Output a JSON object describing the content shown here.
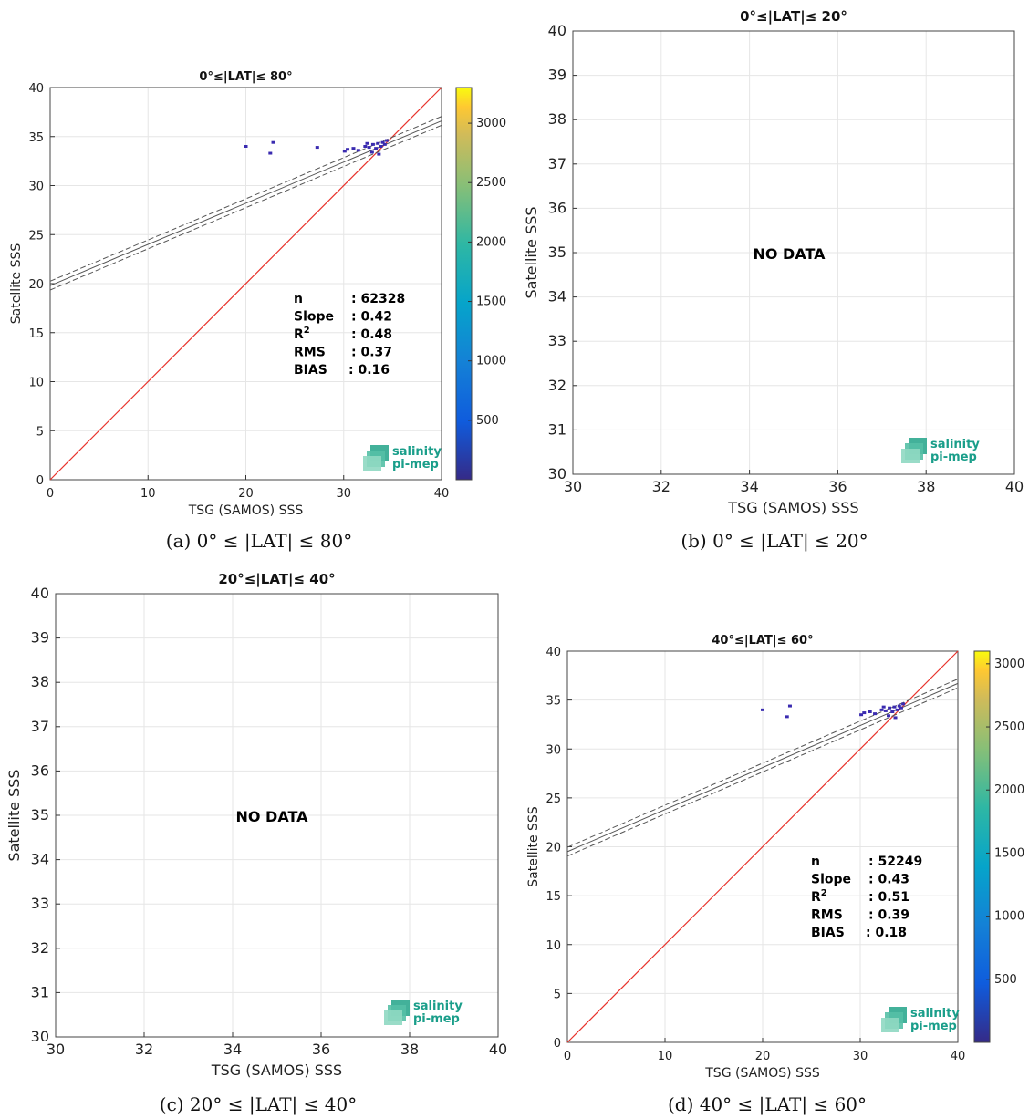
{
  "chart_data": [
    {
      "id": "a",
      "type": "scatter",
      "title": "0°≤|LAT|≤ 80°",
      "caption": "(a) 0° ≤ |LAT| ≤ 80°",
      "xlabel": "TSG (SAMOS) SSS",
      "ylabel": "Satellite SSS",
      "xlim": [
        0,
        40
      ],
      "ylim": [
        0,
        40
      ],
      "xticks": [
        0,
        10,
        20,
        30,
        40
      ],
      "yticks": [
        0,
        5,
        10,
        15,
        20,
        25,
        30,
        35,
        40
      ],
      "has_data": true,
      "no_data_text": "",
      "stats": [
        {
          "label": "n",
          "value": ": 62328"
        },
        {
          "label": "Slope",
          "value": ": 0.42"
        },
        {
          "label": "R2",
          "value": ": 0.48"
        },
        {
          "label": "RMS",
          "value": ": 0.37"
        },
        {
          "label": "BIAS",
          "value": ": 0.16"
        }
      ],
      "fit": {
        "slope": 0.42,
        "intercept": 19.8,
        "band": 0.45
      },
      "colorbar": {
        "min": 0,
        "max": 3300,
        "ticks": [
          500,
          1000,
          1500,
          2000,
          2500,
          3000
        ]
      },
      "points": [
        {
          "x": 20.0,
          "y": 34.0
        },
        {
          "x": 22.8,
          "y": 34.4
        },
        {
          "x": 22.5,
          "y": 33.3
        },
        {
          "x": 27.3,
          "y": 33.9
        },
        {
          "x": 30.1,
          "y": 33.5
        },
        {
          "x": 30.4,
          "y": 33.7
        },
        {
          "x": 31.0,
          "y": 33.8
        },
        {
          "x": 31.5,
          "y": 33.6
        },
        {
          "x": 32.2,
          "y": 34.0
        },
        {
          "x": 32.6,
          "y": 33.9
        },
        {
          "x": 33.0,
          "y": 34.2
        },
        {
          "x": 33.3,
          "y": 33.8
        },
        {
          "x": 33.5,
          "y": 34.3
        },
        {
          "x": 33.8,
          "y": 34.0
        },
        {
          "x": 34.0,
          "y": 34.4
        },
        {
          "x": 34.2,
          "y": 34.2
        },
        {
          "x": 32.9,
          "y": 33.4
        },
        {
          "x": 33.6,
          "y": 33.2
        },
        {
          "x": 34.4,
          "y": 34.6
        },
        {
          "x": 32.4,
          "y": 34.3
        }
      ],
      "logo": [
        "salinity",
        "pi-mep"
      ]
    },
    {
      "id": "b",
      "type": "scatter",
      "title": "0°≤|LAT|≤ 20°",
      "caption": "(b) 0° ≤ |LAT| ≤ 20°",
      "xlabel": "TSG (SAMOS) SSS",
      "ylabel": "Satellite SSS",
      "xlim": [
        30,
        40
      ],
      "ylim": [
        30,
        40
      ],
      "xticks": [
        30,
        32,
        34,
        36,
        38,
        40
      ],
      "yticks": [
        30,
        31,
        32,
        33,
        34,
        35,
        36,
        37,
        38,
        39,
        40
      ],
      "has_data": false,
      "no_data_text": "NO DATA",
      "logo": [
        "salinity",
        "pi-mep"
      ]
    },
    {
      "id": "c",
      "type": "scatter",
      "title": "20°≤|LAT|≤ 40°",
      "caption": "(c) 20° ≤ |LAT| ≤ 40°",
      "xlabel": "TSG (SAMOS) SSS",
      "ylabel": "Satellite SSS",
      "xlim": [
        30,
        40
      ],
      "ylim": [
        30,
        40
      ],
      "xticks": [
        30,
        32,
        34,
        36,
        38,
        40
      ],
      "yticks": [
        30,
        31,
        32,
        33,
        34,
        35,
        36,
        37,
        38,
        39,
        40
      ],
      "has_data": false,
      "no_data_text": "NO DATA",
      "logo": [
        "salinity",
        "pi-mep"
      ]
    },
    {
      "id": "d",
      "type": "scatter",
      "title": "40°≤|LAT|≤ 60°",
      "caption": "(d) 40° ≤ |LAT| ≤ 60°",
      "xlabel": "TSG (SAMOS) SSS",
      "ylabel": "Satellite SSS",
      "xlim": [
        0,
        40
      ],
      "ylim": [
        0,
        40
      ],
      "xticks": [
        0,
        10,
        20,
        30,
        40
      ],
      "yticks": [
        0,
        5,
        10,
        15,
        20,
        25,
        30,
        35,
        40
      ],
      "has_data": true,
      "no_data_text": "",
      "stats": [
        {
          "label": "n",
          "value": ": 52249"
        },
        {
          "label": "Slope",
          "value": ": 0.43"
        },
        {
          "label": "R2",
          "value": ": 0.51"
        },
        {
          "label": "RMS",
          "value": ": 0.39"
        },
        {
          "label": "BIAS",
          "value": ": 0.18"
        }
      ],
      "fit": {
        "slope": 0.43,
        "intercept": 19.5,
        "band": 0.45
      },
      "colorbar": {
        "min": 0,
        "max": 3100,
        "ticks": [
          500,
          1000,
          1500,
          2000,
          2500,
          3000
        ]
      },
      "points": [
        {
          "x": 20.0,
          "y": 34.0
        },
        {
          "x": 22.8,
          "y": 34.4
        },
        {
          "x": 22.5,
          "y": 33.3
        },
        {
          "x": 30.1,
          "y": 33.5
        },
        {
          "x": 30.4,
          "y": 33.7
        },
        {
          "x": 31.0,
          "y": 33.8
        },
        {
          "x": 31.5,
          "y": 33.6
        },
        {
          "x": 32.2,
          "y": 34.0
        },
        {
          "x": 32.6,
          "y": 33.9
        },
        {
          "x": 33.0,
          "y": 34.2
        },
        {
          "x": 33.3,
          "y": 33.8
        },
        {
          "x": 33.5,
          "y": 34.3
        },
        {
          "x": 33.8,
          "y": 34.0
        },
        {
          "x": 34.0,
          "y": 34.4
        },
        {
          "x": 34.2,
          "y": 34.2
        },
        {
          "x": 32.9,
          "y": 33.4
        },
        {
          "x": 33.6,
          "y": 33.2
        },
        {
          "x": 34.4,
          "y": 34.6
        },
        {
          "x": 32.4,
          "y": 34.3
        }
      ],
      "logo": [
        "salinity",
        "pi-mep"
      ]
    }
  ],
  "colors": {
    "identity_line": "#e8322b",
    "fit_line": "#555555",
    "point": "#3a2bb0",
    "grid": "#e6e6e6",
    "logo": "#1a9e8a"
  }
}
